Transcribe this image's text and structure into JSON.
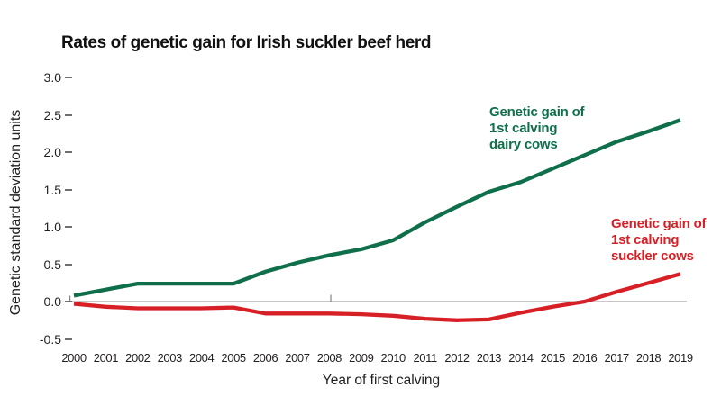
{
  "chart_data": {
    "type": "line",
    "title": "Rates of genetic gain for Irish suckler beef herd",
    "xlabel": "Year of first calving",
    "ylabel": "Genetic standard deviation units",
    "categories": [
      2000,
      2001,
      2002,
      2003,
      2004,
      2005,
      2006,
      2007,
      2008,
      2009,
      2010,
      2011,
      2012,
      2013,
      2014,
      2015,
      2016,
      2017,
      2018,
      2019
    ],
    "ytick_labels": [
      "3.0",
      "2.5",
      "2.0",
      "1.5",
      "1.0",
      "0.5",
      "0.0",
      "-0.5"
    ],
    "ylim": [
      -0.5,
      3.0
    ],
    "grid": false,
    "legend_position": "inline-annotations",
    "series": [
      {
        "name": "Genetic gain of 1st calving dairy cows",
        "annotation": "Genetic gain of\n1st calving\ndairy cows",
        "color": "#0f6f4b",
        "values": [
          0.08,
          0.16,
          0.24,
          0.24,
          0.24,
          0.24,
          0.4,
          0.52,
          0.62,
          0.7,
          0.82,
          1.06,
          1.27,
          1.47,
          1.6,
          1.78,
          1.96,
          2.14,
          2.28,
          2.43
        ]
      },
      {
        "name": "Genetic gain of 1st calving suckler cows",
        "annotation": "Genetic gain of\n1st calving\nsuckler cows",
        "color": "#d71f26",
        "values": [
          -0.03,
          -0.07,
          -0.09,
          -0.09,
          -0.09,
          -0.08,
          -0.16,
          -0.16,
          -0.16,
          -0.17,
          -0.19,
          -0.23,
          -0.25,
          -0.24,
          -0.15,
          -0.07,
          0.0,
          0.13,
          0.25,
          0.37
        ]
      }
    ],
    "colors": {
      "axis_line": "#a7a5a6",
      "tick_dash": "#6d6e71",
      "text": "#231f20",
      "background": "#ffffff"
    }
  }
}
